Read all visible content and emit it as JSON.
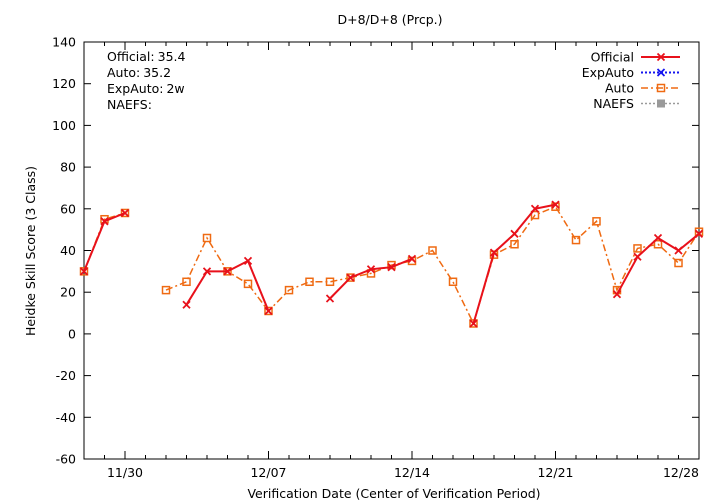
{
  "chart_data": {
    "type": "line",
    "title": "D+8/D+8 (Prcp.)",
    "xlabel": "Verification Date (Center of Verification Period)",
    "ylabel": "Heidke Skill Score (3 Class)",
    "ylim": [
      -60,
      140
    ],
    "yticks": [
      "140",
      "120",
      "100",
      "80",
      "60",
      "40",
      "20",
      "0",
      "-20",
      "-40",
      "-60"
    ],
    "xlim": [
      "2025-11-28",
      "2025-12-28"
    ],
    "xticks": [
      {
        "label": "11/30",
        "date": "2025-11-30"
      },
      {
        "label": "12/07",
        "date": "2025-12-07"
      },
      {
        "label": "12/14",
        "date": "2025-12-14"
      },
      {
        "label": "12/21",
        "date": "2025-12-21"
      },
      {
        "label": "12/28",
        "date": "2025-12-28"
      }
    ],
    "grid": false,
    "legend_position": "top-right",
    "stats": [
      {
        "label": "Official:",
        "value": "35.4"
      },
      {
        "label": "Auto:",
        "value": "35.2"
      },
      {
        "label": "ExpAuto:",
        "value": "2w"
      },
      {
        "label": "NAEFS:",
        "value": ""
      }
    ],
    "series": [
      {
        "name": "Official",
        "color": "#e8111b",
        "marker": "x",
        "points": [
          [
            "2025-11-28",
            30
          ],
          [
            "2025-11-29",
            54
          ],
          [
            "2025-11-30",
            58
          ],
          [
            "2025-12-01",
            null
          ],
          [
            "2025-12-03",
            14
          ],
          [
            "2025-12-04",
            30
          ],
          [
            "2025-12-05",
            30
          ],
          [
            "2025-12-06",
            35
          ],
          [
            "2025-12-07",
            11
          ],
          [
            "2025-12-08",
            null
          ],
          [
            "2025-12-10",
            17
          ],
          [
            "2025-12-11",
            27
          ],
          [
            "2025-12-12",
            31
          ],
          [
            "2025-12-13",
            32
          ],
          [
            "2025-12-14",
            36
          ],
          [
            "2025-12-15",
            null
          ],
          [
            "2025-12-17",
            5
          ],
          [
            "2025-12-18",
            39
          ],
          [
            "2025-12-19",
            48
          ],
          [
            "2025-12-20",
            60
          ],
          [
            "2025-12-21",
            62
          ],
          [
            "2025-12-22",
            null
          ],
          [
            "2025-12-24",
            19
          ],
          [
            "2025-12-25",
            37
          ],
          [
            "2025-12-26",
            46
          ],
          [
            "2025-12-27",
            40
          ],
          [
            "2025-12-28",
            48
          ]
        ]
      },
      {
        "name": "ExpAuto",
        "color": "#1515ef",
        "marker": "x",
        "points": []
      },
      {
        "name": "Auto",
        "color": "#ef6a12",
        "marker": "square",
        "points": [
          [
            "2025-11-28",
            30
          ],
          [
            "2025-11-29",
            55
          ],
          [
            "2025-11-30",
            58
          ],
          [
            "2025-12-01",
            null
          ],
          [
            "2025-12-02",
            21
          ],
          [
            "2025-12-03",
            25
          ],
          [
            "2025-12-04",
            46
          ],
          [
            "2025-12-05",
            30
          ],
          [
            "2025-12-06",
            24
          ],
          [
            "2025-12-07",
            11
          ],
          [
            "2025-12-08",
            21
          ],
          [
            "2025-12-09",
            25
          ],
          [
            "2025-12-10",
            25
          ],
          [
            "2025-12-11",
            27
          ],
          [
            "2025-12-12",
            29
          ],
          [
            "2025-12-13",
            33
          ],
          [
            "2025-12-14",
            35
          ],
          [
            "2025-12-15",
            40
          ],
          [
            "2025-12-16",
            25
          ],
          [
            "2025-12-17",
            5
          ],
          [
            "2025-12-18",
            38
          ],
          [
            "2025-12-19",
            43
          ],
          [
            "2025-12-20",
            57
          ],
          [
            "2025-12-21",
            61
          ],
          [
            "2025-12-22",
            45
          ],
          [
            "2025-12-23",
            54
          ],
          [
            "2025-12-24",
            21
          ],
          [
            "2025-12-25",
            41
          ],
          [
            "2025-12-26",
            43
          ],
          [
            "2025-12-27",
            34
          ],
          [
            "2025-12-28",
            49
          ]
        ]
      },
      {
        "name": "NAEFS",
        "color": "#9a9a9a",
        "marker": "square-filled",
        "points": []
      }
    ]
  }
}
